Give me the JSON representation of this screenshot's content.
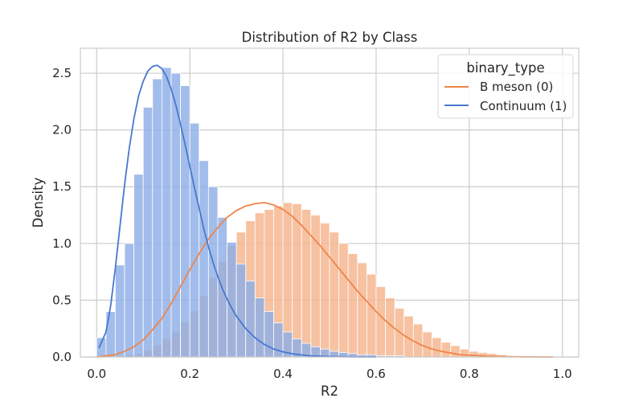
{
  "chart_data": {
    "type": "histogram",
    "title": "Distribution of R2 by Class",
    "xlabel": "R2",
    "ylabel": "Density",
    "xlim": [
      -0.035,
      1.035
    ],
    "ylim": [
      0,
      2.72
    ],
    "xticks": [
      0.0,
      0.2,
      0.4,
      0.6,
      0.8,
      1.0
    ],
    "xtick_labels": [
      "0.0",
      "0.2",
      "0.4",
      "0.6",
      "0.8",
      "1.0"
    ],
    "yticks": [
      0.0,
      0.5,
      1.0,
      1.5,
      2.0,
      2.5
    ],
    "ytick_labels": [
      "0.0",
      "0.5",
      "1.0",
      "1.5",
      "2.0",
      "2.5"
    ],
    "grid": true,
    "bin_width": 0.02,
    "bin_start": 0.0,
    "legend": {
      "title": "binary_type",
      "placement": "top-right",
      "entries": [
        "B meson (0)",
        "Continuum (1)"
      ]
    },
    "series": [
      {
        "name": "B meson (0)",
        "line_color": "#ee854a",
        "fill_color": "#f5b48c",
        "values": [
          0.0,
          0.0,
          0.01,
          0.02,
          0.03,
          0.06,
          0.1,
          0.16,
          0.22,
          0.31,
          0.41,
          0.54,
          0.7,
          0.84,
          0.98,
          1.1,
          1.2,
          1.27,
          1.3,
          1.33,
          1.36,
          1.35,
          1.3,
          1.25,
          1.18,
          1.1,
          1.0,
          0.91,
          0.83,
          0.73,
          0.62,
          0.52,
          0.43,
          0.36,
          0.29,
          0.22,
          0.17,
          0.13,
          0.1,
          0.07,
          0.05,
          0.04,
          0.03,
          0.02,
          0.01,
          0.01,
          0.0,
          0.0,
          0.0,
          0.0
        ],
        "kde": [
          [
            0.0,
            0.0
          ],
          [
            0.02,
            0.01
          ],
          [
            0.04,
            0.02
          ],
          [
            0.06,
            0.05
          ],
          [
            0.08,
            0.09
          ],
          [
            0.1,
            0.15
          ],
          [
            0.12,
            0.24
          ],
          [
            0.14,
            0.34
          ],
          [
            0.16,
            0.47
          ],
          [
            0.18,
            0.62
          ],
          [
            0.2,
            0.77
          ],
          [
            0.22,
            0.91
          ],
          [
            0.24,
            1.04
          ],
          [
            0.26,
            1.14
          ],
          [
            0.28,
            1.23
          ],
          [
            0.3,
            1.29
          ],
          [
            0.32,
            1.33
          ],
          [
            0.34,
            1.35
          ],
          [
            0.36,
            1.36
          ],
          [
            0.38,
            1.34
          ],
          [
            0.4,
            1.3
          ],
          [
            0.42,
            1.24
          ],
          [
            0.44,
            1.16
          ],
          [
            0.46,
            1.07
          ],
          [
            0.48,
            0.98
          ],
          [
            0.5,
            0.88
          ],
          [
            0.52,
            0.78
          ],
          [
            0.54,
            0.68
          ],
          [
            0.56,
            0.58
          ],
          [
            0.58,
            0.49
          ],
          [
            0.6,
            0.4
          ],
          [
            0.62,
            0.32
          ],
          [
            0.64,
            0.25
          ],
          [
            0.66,
            0.19
          ],
          [
            0.68,
            0.14
          ],
          [
            0.7,
            0.1
          ],
          [
            0.72,
            0.07
          ],
          [
            0.74,
            0.05
          ],
          [
            0.76,
            0.035
          ],
          [
            0.78,
            0.02
          ],
          [
            0.8,
            0.015
          ],
          [
            0.84,
            0.007
          ],
          [
            0.88,
            0.003
          ],
          [
            0.92,
            0.001
          ],
          [
            0.98,
            0.0
          ]
        ]
      },
      {
        "name": "Continuum (1)",
        "line_color": "#4878d0",
        "fill_color": "#8eaee6",
        "values": [
          0.17,
          0.4,
          0.81,
          1.0,
          1.61,
          2.2,
          2.45,
          2.55,
          2.5,
          2.39,
          2.06,
          1.73,
          1.5,
          1.23,
          1.01,
          0.82,
          0.67,
          0.52,
          0.4,
          0.3,
          0.22,
          0.16,
          0.12,
          0.09,
          0.07,
          0.05,
          0.04,
          0.03,
          0.02,
          0.02,
          0.01,
          0.01,
          0.01,
          0.0,
          0.0,
          0.0,
          0.0,
          0.0,
          0.0,
          0.0,
          0.0,
          0.0,
          0.0,
          0.0,
          0.0,
          0.0,
          0.0,
          0.0,
          0.0,
          0.0
        ],
        "kde": [
          [
            0.005,
            0.08
          ],
          [
            0.02,
            0.22
          ],
          [
            0.03,
            0.45
          ],
          [
            0.04,
            0.78
          ],
          [
            0.05,
            1.15
          ],
          [
            0.06,
            1.52
          ],
          [
            0.07,
            1.84
          ],
          [
            0.08,
            2.1
          ],
          [
            0.09,
            2.3
          ],
          [
            0.1,
            2.43
          ],
          [
            0.11,
            2.52
          ],
          [
            0.12,
            2.56
          ],
          [
            0.13,
            2.57
          ],
          [
            0.14,
            2.54
          ],
          [
            0.15,
            2.47
          ],
          [
            0.16,
            2.36
          ],
          [
            0.17,
            2.22
          ],
          [
            0.18,
            2.05
          ],
          [
            0.19,
            1.87
          ],
          [
            0.2,
            1.68
          ],
          [
            0.21,
            1.49
          ],
          [
            0.22,
            1.31
          ],
          [
            0.23,
            1.13
          ],
          [
            0.24,
            0.97
          ],
          [
            0.25,
            0.83
          ],
          [
            0.26,
            0.71
          ],
          [
            0.27,
            0.6
          ],
          [
            0.28,
            0.51
          ],
          [
            0.29,
            0.43
          ],
          [
            0.3,
            0.36
          ],
          [
            0.32,
            0.25
          ],
          [
            0.34,
            0.17
          ],
          [
            0.36,
            0.11
          ],
          [
            0.38,
            0.07
          ],
          [
            0.4,
            0.045
          ],
          [
            0.42,
            0.028
          ],
          [
            0.44,
            0.018
          ],
          [
            0.46,
            0.01
          ],
          [
            0.5,
            0.004
          ],
          [
            0.55,
            0.001
          ],
          [
            0.6,
            0.0
          ]
        ]
      }
    ]
  }
}
